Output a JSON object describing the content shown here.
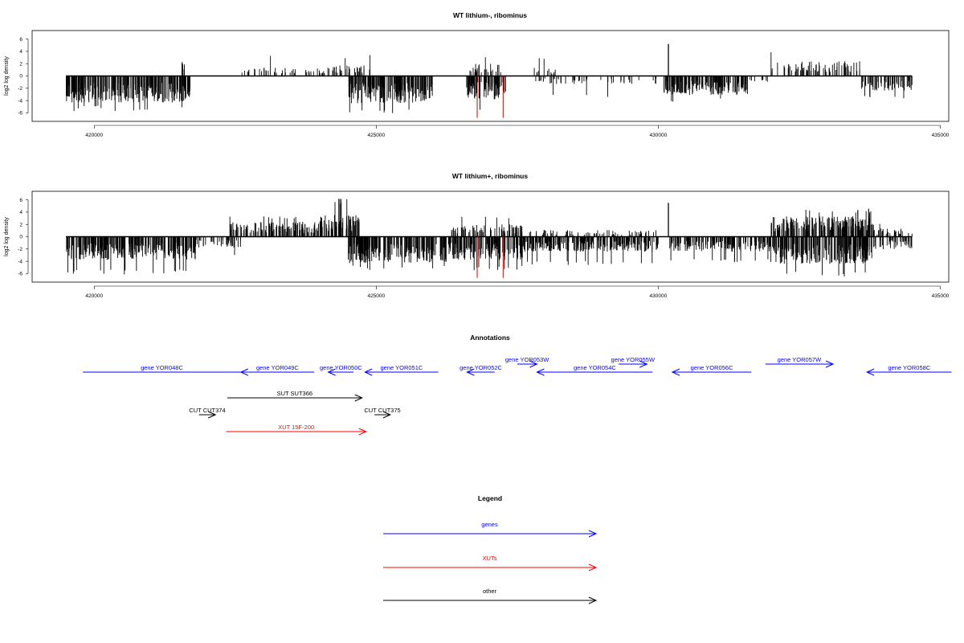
{
  "chart_data": [
    {
      "type": "bar",
      "title": "WT lithium-, ribominus",
      "ylabel": "log2 log density",
      "xlabel": "",
      "xlim": [
        418900,
        435150
      ],
      "ylim": [
        -7,
        7
      ],
      "xticks": [
        "420000",
        "425000",
        "430000",
        "435000"
      ],
      "yticks": [
        "-6",
        "-4",
        "-2",
        "0",
        "2",
        "4",
        "6"
      ],
      "baseline_range": [
        419500,
        434500
      ],
      "density_profile": [
        {
          "range": [
            419500,
            421700
          ],
          "dir": -1,
          "avg": -3.2,
          "max": -5.7,
          "dens": 1.0
        },
        {
          "range": [
            421550,
            421600
          ],
          "dir": 1,
          "avg": 2.2,
          "max": 2.2,
          "dens": 1.0
        },
        {
          "range": [
            422600,
            424100
          ],
          "dir": 1,
          "avg": 1.0,
          "max": 3.3,
          "dens": 0.25
        },
        {
          "range": [
            424100,
            424900
          ],
          "dir": 1,
          "avg": 1.4,
          "max": 3.4,
          "dens": 0.35
        },
        {
          "range": [
            424500,
            426000
          ],
          "dir": -1,
          "avg": -3.3,
          "max": -6.2,
          "dens": 1.0
        },
        {
          "range": [
            426600,
            427300
          ],
          "dir": -1,
          "avg": -2.8,
          "max": -5.8,
          "dens": 0.9
        },
        {
          "range": [
            426600,
            427300
          ],
          "dir": 1,
          "avg": 1.5,
          "max": 3.2,
          "dens": 0.3
        },
        {
          "range": [
            427600,
            428200
          ],
          "dir": 1,
          "avg": 1.0,
          "max": 3.0,
          "dens": 0.2
        },
        {
          "range": [
            427800,
            430000
          ],
          "dir": -1,
          "avg": -1.0,
          "max": -3.6,
          "dens": 0.2
        },
        {
          "range": [
            430100,
            431600
          ],
          "dir": -1,
          "avg": -2.3,
          "max": -4.2,
          "dens": 0.9
        },
        {
          "range": [
            431600,
            432000
          ],
          "dir": -1,
          "avg": -1.0,
          "max": -2.5,
          "dens": 0.2
        },
        {
          "range": [
            432000,
            433600
          ],
          "dir": 1,
          "avg": 1.8,
          "max": 4.2,
          "dens": 0.4
        },
        {
          "range": [
            433600,
            434500
          ],
          "dir": -1,
          "avg": -1.8,
          "max": -3.8,
          "dens": 0.6
        }
      ],
      "spikes": [
        {
          "x": 430180,
          "y": 5.2
        }
      ],
      "highlight_lines": [
        {
          "x": 426790,
          "y": -6.8,
          "color": "#d40000"
        },
        {
          "x": 427250,
          "y": -6.8,
          "color": "#d40000"
        }
      ]
    },
    {
      "type": "bar",
      "title": "WT lithium+, ribominus",
      "ylabel": "log2 log density",
      "xlabel": "",
      "xlim": [
        418900,
        435150
      ],
      "ylim": [
        -7,
        7
      ],
      "xticks": [
        "420000",
        "425000",
        "430000",
        "435000"
      ],
      "yticks": [
        "-6",
        "-4",
        "-2",
        "0",
        "2",
        "4",
        "6"
      ],
      "baseline_range": [
        419500,
        434500
      ],
      "density_profile": [
        {
          "range": [
            419500,
            421800
          ],
          "dir": -1,
          "avg": -2.8,
          "max": -6.2,
          "dens": 1.0
        },
        {
          "range": [
            421800,
            422600
          ],
          "dir": -1,
          "avg": -1.3,
          "max": -3.0,
          "dens": 0.4
        },
        {
          "range": [
            422400,
            424000
          ],
          "dir": 1,
          "avg": 1.8,
          "max": 3.5,
          "dens": 0.7
        },
        {
          "range": [
            424000,
            424700
          ],
          "dir": 1,
          "avg": 2.6,
          "max": 6.3,
          "dens": 1.0
        },
        {
          "range": [
            424500,
            426300
          ],
          "dir": -1,
          "avg": -3.2,
          "max": -5.5,
          "dens": 1.0
        },
        {
          "range": [
            426300,
            427600
          ],
          "dir": -1,
          "avg": -2.8,
          "max": -5.5,
          "dens": 1.0
        },
        {
          "range": [
            426300,
            427600
          ],
          "dir": 1,
          "avg": 1.5,
          "max": 3.3,
          "dens": 0.5
        },
        {
          "range": [
            427600,
            430000
          ],
          "dir": -1,
          "avg": -1.8,
          "max": -4.6,
          "dens": 0.9
        },
        {
          "range": [
            427600,
            430000
          ],
          "dir": 1,
          "avg": 0.8,
          "max": 2.6,
          "dens": 0.25
        },
        {
          "range": [
            430200,
            432000
          ],
          "dir": -1,
          "avg": -1.8,
          "max": -4.3,
          "dens": 0.8
        },
        {
          "range": [
            432000,
            433800
          ],
          "dir": -1,
          "avg": -3.3,
          "max": -6.7,
          "dens": 1.0
        },
        {
          "range": [
            432000,
            433800
          ],
          "dir": 1,
          "avg": 2.5,
          "max": 4.6,
          "dens": 1.0
        },
        {
          "range": [
            433800,
            434500
          ],
          "dir": -1,
          "avg": -1.5,
          "max": -3.5,
          "dens": 0.5
        },
        {
          "range": [
            433800,
            434500
          ],
          "dir": 1,
          "avg": 1.0,
          "max": 2.2,
          "dens": 0.4
        }
      ],
      "spikes": [
        {
          "x": 430180,
          "y": 5.5
        }
      ],
      "highlight_lines": [
        {
          "x": 426790,
          "y": -6.7,
          "color": "#d40000"
        },
        {
          "x": 427250,
          "y": -6.7,
          "color": "#d40000"
        }
      ]
    }
  ],
  "annotations": {
    "title": "Annotations",
    "features": [
      {
        "label": "gene YOR048C",
        "start": 419800,
        "end": 422600,
        "row": 0,
        "type": "gene",
        "strand": "none"
      },
      {
        "label": "gene YOR049C",
        "start": 422600,
        "end": 423900,
        "row": 0,
        "type": "gene",
        "strand": "-"
      },
      {
        "label": "gene YOR050C",
        "start": 424150,
        "end": 424600,
        "row": 0,
        "type": "gene",
        "strand": "-"
      },
      {
        "label": "gene YOR051C",
        "start": 424800,
        "end": 426100,
        "row": 0,
        "type": "gene",
        "strand": "-"
      },
      {
        "label": "gene YOR052C",
        "start": 426610,
        "end": 427100,
        "row": 0,
        "type": "gene",
        "strand": "-"
      },
      {
        "label": "gene YOR053W",
        "start": 427500,
        "end": 427850,
        "row": -1,
        "type": "gene",
        "strand": "+"
      },
      {
        "label": "gene YOR054C",
        "start": 427850,
        "end": 429900,
        "row": 0,
        "type": "gene",
        "strand": "-"
      },
      {
        "label": "gene YOR055W",
        "start": 429300,
        "end": 429800,
        "row": -1,
        "type": "gene",
        "strand": "+"
      },
      {
        "label": "gene YOR056C",
        "start": 430250,
        "end": 431650,
        "row": 0,
        "type": "gene",
        "strand": "-"
      },
      {
        "label": "gene YOR057W",
        "start": 431900,
        "end": 433100,
        "row": -1,
        "type": "gene",
        "strand": "+"
      },
      {
        "label": "gene YOR058C",
        "start": 433700,
        "end": 435200,
        "row": 0,
        "type": "gene",
        "strand": "-"
      },
      {
        "label": "SUT SUT366",
        "start": 422360,
        "end": 424750,
        "row": 1,
        "type": "other",
        "strand": "+"
      },
      {
        "label": "CUT CUT374",
        "start": 421860,
        "end": 422150,
        "row": 2,
        "type": "other",
        "strand": "+"
      },
      {
        "label": "CUT CUT375",
        "start": 424970,
        "end": 425250,
        "row": 2,
        "type": "other",
        "strand": "+"
      },
      {
        "label": "XUT 15F-200",
        "start": 422340,
        "end": 424820,
        "row": 3,
        "type": "xut",
        "strand": "+"
      }
    ]
  },
  "legend": {
    "title": "Legend",
    "items": [
      {
        "label": "genes",
        "color": "#0000ff"
      },
      {
        "label": "XUTs",
        "color": "#ff0000"
      },
      {
        "label": "other",
        "color": "#000000"
      }
    ]
  },
  "colors": {
    "gene": "#0000ff",
    "xut": "#ff0000",
    "other": "#000000",
    "signal": "#000000",
    "highlight": "#d40000"
  }
}
